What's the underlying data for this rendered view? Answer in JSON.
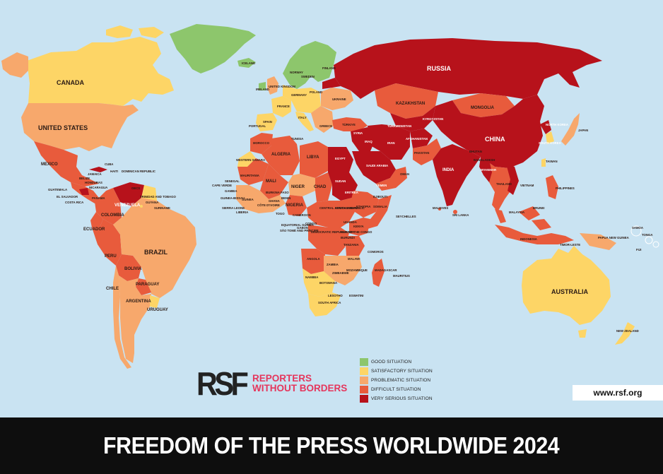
{
  "title": "FREEDOM OF THE PRESS WORLDWIDE 2024",
  "colors": {
    "ocean": "#c9e3f2",
    "good": "#8dc66c",
    "satisfactory": "#fdd566",
    "problematic": "#f7a86c",
    "difficult": "#e85b3c",
    "very_serious": "#b7121b"
  },
  "legend": [
    {
      "key": "good",
      "label": "GOOD SITUATION"
    },
    {
      "key": "satisfactory",
      "label": "SATISFACTORY SITUATION"
    },
    {
      "key": "problematic",
      "label": "PROBLEMATIC SITUATION"
    },
    {
      "key": "difficult",
      "label": "DIFFICULT SITUATION"
    },
    {
      "key": "very_serious",
      "label": "VERY SERIOUS SITUATION"
    }
  ],
  "logo": {
    "mark": "RSF",
    "line1": "REPORTERS",
    "line2": "WITHOUT BORDERS"
  },
  "website": "www.rsf.org",
  "labels": {
    "canada": "CANADA",
    "united_states": "UNITED STATES",
    "mexico": "MEXICO",
    "cuba": "CUBA",
    "haiti": "HAITI",
    "dominican_republic": "DOMINICAN REPUBLIC",
    "jamaica": "JAMAICA",
    "belize": "BELIZE",
    "honduras": "HONDURAS",
    "nicaragua": "NICARAGUA",
    "guatemala": "GUATEMALA",
    "el_salvador": "EL SALVADOR",
    "costa_rica": "COSTA RICA",
    "panama": "PANAMA",
    "oecs": "OECS",
    "trinidad_tobago": "TRINIDAD AND TOBAGO",
    "guyana": "GUYANA",
    "suriname": "SURINAME",
    "venezuela": "VENEZUELA",
    "colombia": "COLOMBIA",
    "ecuador": "ECUADOR",
    "peru": "PERU",
    "brazil": "BRAZIL",
    "bolivia": "BOLIVIA",
    "paraguay": "PARAGUAY",
    "chile": "CHILE",
    "argentina": "ARGENTINA",
    "uruguay": "URUGUAY",
    "iceland": "ICELAND",
    "norway": "NORWAY",
    "sweden": "SWEDEN",
    "finland": "FINLAND",
    "united_kingdom": "UNITED KINGDOM",
    "ireland": "IRELAND",
    "france": "FRANCE",
    "spain": "SPAIN",
    "portugal": "PORTUGAL",
    "germany": "GERMANY",
    "poland": "POLAND",
    "ukraine": "UKRAINE",
    "italy": "ITALY",
    "greece": "GREECE",
    "turkiye": "TÜRKIYE",
    "russia": "RUSSIA",
    "kazakhstan": "KAZAKHSTAN",
    "mongolia": "MONGOLIA",
    "china": "CHINA",
    "japan": "JAPAN",
    "south_korea": "SOUTH KOREA",
    "north_korea": "NORTH KOREA",
    "taiwan": "TAIWAN",
    "turkmenistan": "TURKMENISTAN",
    "kyrgyzstan": "KYRGYZSTAN",
    "afghanistan": "AFGHANISTAN",
    "pakistan": "PAKISTAN",
    "india": "INDIA",
    "iran": "IRAN",
    "iraq": "IRAQ",
    "syria": "SYRIA",
    "saudi_arabia": "SAUDI ARABIA",
    "yemen": "YEMEN",
    "oman": "OMAN",
    "bhutan": "BHUTAN",
    "bangladesh": "BANGLADESH",
    "myanmar": "MYANMAR",
    "thailand": "THAILAND",
    "vietnam": "VIETNAM",
    "philippines": "PHILIPPINES",
    "malaysia": "MALAYSIA",
    "brunei": "BRUNEI",
    "indonesia": "INDONESIA",
    "timor_leste": "TIMOR-LESTE",
    "papua_new_guinea": "PAPUA NEW GUINEA",
    "sri_lanka": "SRI LANKA",
    "maldives": "MALDIVES",
    "seychelles": "SEYCHELLES",
    "mauritius": "MAURITIUS",
    "australia": "AUSTRALIA",
    "new_zealand": "NEW ZEALAND",
    "fiji": "FIJI",
    "samoa": "SAMOA",
    "tonga": "TONGA",
    "morocco": "MOROCCO",
    "algeria": "ALGERIA",
    "tunisia": "TUNISIA",
    "libya": "LIBYA",
    "egypt": "EGYPT",
    "western_sahara": "WESTERN SAHARA",
    "mauritania": "MAURITANIA",
    "mali": "MALI",
    "niger": "NIGER",
    "chad": "CHAD",
    "sudan": "SUDAN",
    "south_sudan": "SOUTH SUDAN",
    "ethiopia": "ETHIOPIA",
    "eritrea": "ERITREA",
    "djibouti": "DJIBOUTI",
    "somalia": "SOMALIA",
    "senegal": "SENEGAL",
    "cape_verde": "CAPE VERDE",
    "gambia": "GAMBIA",
    "guinea_bissau": "GUINEA-BISSAU",
    "guinea": "GUINEA",
    "sierra_leone": "SIERRA LEONE",
    "liberia": "LIBERIA",
    "cote_divoire": "CÔTE D'IVOIRE",
    "burkina_faso": "BURKINA FASO",
    "ghana": "GHANA",
    "togo": "TOGO",
    "benin": "BENIN",
    "nigeria": "NIGERIA",
    "cameroon": "CAMEROON",
    "car": "CENTRAL AFRICAN REPUBLIC",
    "equatorial_guinea": "EQUATORIAL GUINEA",
    "gabon": "GABON",
    "congo": "CONGO",
    "drc": "DEMOCRATIC REPUBLIC OF THE CONGO",
    "uganda": "UGANDA",
    "kenya": "KENYA",
    "rwanda": "RWANDA",
    "burundi": "BURUNDI",
    "tanzania": "TANZANIA",
    "angola": "ANGOLA",
    "zambia": "ZAMBIA",
    "malawi": "MALAWI",
    "mozambique": "MOZAMBIQUE",
    "zimbabwe": "ZIMBABWE",
    "namibia": "NAMIBIA",
    "botswana": "BOTSWANA",
    "south_africa": "SOUTH AFRICA",
    "lesotho": "LESOTHO",
    "eswatini": "ESWATINI",
    "madagascar": "MADAGASCAR",
    "comoros": "COMOROS",
    "sao_tome": "SÃO TOMÉ AND PRÍNCIPE"
  }
}
